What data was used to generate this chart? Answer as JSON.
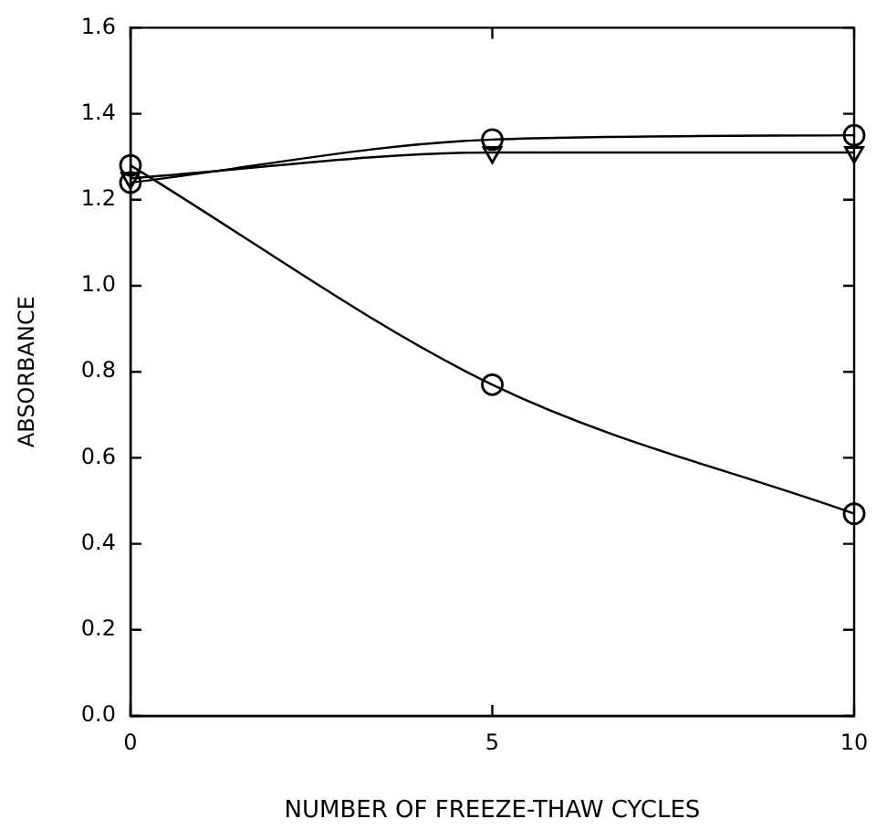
{
  "chart_data": {
    "type": "line",
    "xlabel": "NUMBER OF FREEZE-THAW CYCLES",
    "ylabel": "ABSORBANCE",
    "x": [
      0,
      5,
      10
    ],
    "series": [
      {
        "color": "#000000",
        "values": [
          1.24,
          1.34,
          1.35
        ],
        "marker": "circle"
      },
      {
        "color": "#000000",
        "values": [
          1.25,
          1.31,
          1.31
        ],
        "marker": "triangle"
      },
      {
        "color": "#000000",
        "values": [
          1.28,
          0.77,
          0.47
        ],
        "marker": "circle"
      }
    ],
    "xlim": [
      0,
      10
    ],
    "xticks": [
      0,
      5,
      10
    ],
    "ylim": [
      0,
      1.6
    ],
    "yticks": [
      {
        "value": 0,
        "label": "0.0"
      },
      {
        "value": 0.2,
        "label": "0.2"
      },
      {
        "value": 0.4,
        "label": "0.4"
      },
      {
        "value": 0.6,
        "label": "0.6"
      },
      {
        "value": 0.8,
        "label": "0.8"
      },
      {
        "value": 1.0,
        "label": "1.0"
      },
      {
        "value": 1.2,
        "label": "1.2"
      },
      {
        "value": 1.4,
        "label": "1.4"
      },
      {
        "value": 1.6,
        "label": "1.6"
      }
    ],
    "grid": false,
    "legend": false,
    "line_style": "solid"
  }
}
